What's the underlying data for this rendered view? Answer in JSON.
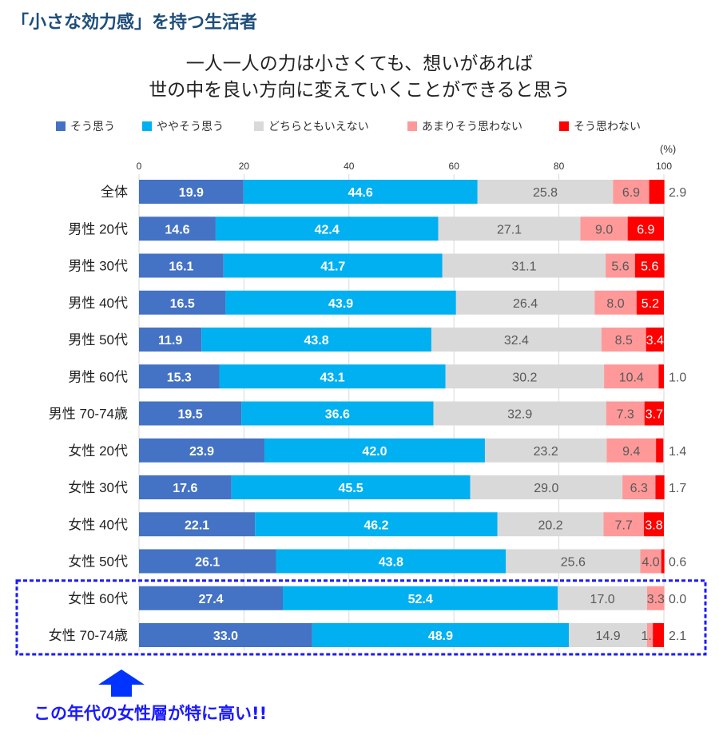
{
  "header": {
    "title": "「小さな効力感」を持つ生活者"
  },
  "chart_data": {
    "type": "bar",
    "orientation": "horizontal",
    "stacked": true,
    "title_lines": [
      "一人一人の力は小さくても、想いがあれば",
      "世の中を良い方向に変えていくことができると思う"
    ],
    "unit_label": "(%)",
    "xlim": [
      0,
      100
    ],
    "xticks": [
      0,
      20,
      40,
      60,
      80,
      100
    ],
    "grid": true,
    "legend_position": "top",
    "categories": [
      "全体",
      "男性 20代",
      "男性 30代",
      "男性 40代",
      "男性 50代",
      "男性 60代",
      "男性 70-74歳",
      "女性 20代",
      "女性 30代",
      "女性 40代",
      "女性 50代",
      "女性 60代",
      "女性 70-74歳"
    ],
    "series": [
      {
        "name": "そう思う",
        "color": "#4472C4",
        "values": [
          19.9,
          14.6,
          16.1,
          16.5,
          11.9,
          15.3,
          19.5,
          23.9,
          17.6,
          22.1,
          26.1,
          27.4,
          33.0
        ]
      },
      {
        "name": "ややそう思う",
        "color": "#00B0F0",
        "values": [
          44.6,
          42.4,
          41.7,
          43.9,
          43.8,
          43.1,
          36.6,
          42.0,
          45.5,
          46.2,
          43.8,
          52.4,
          48.9
        ]
      },
      {
        "name": "どちらともいえない",
        "color": "#D9D9D9",
        "values": [
          25.8,
          27.1,
          31.1,
          26.4,
          32.4,
          30.2,
          32.9,
          23.2,
          29.0,
          20.2,
          25.6,
          17.0,
          14.9
        ]
      },
      {
        "name": "あまりそう思わない",
        "color": "#FF9999",
        "values": [
          6.9,
          9.0,
          5.6,
          8.0,
          8.5,
          10.4,
          7.3,
          9.4,
          6.3,
          7.7,
          4.0,
          3.3,
          1.1
        ]
      },
      {
        "name": "そう思わない",
        "color": "#FF0000",
        "values": [
          2.9,
          6.9,
          5.6,
          5.2,
          3.4,
          1.0,
          3.7,
          1.4,
          1.7,
          3.8,
          0.6,
          0.0,
          2.1
        ]
      }
    ],
    "highlighted_categories": [
      "女性 60代",
      "女性 70-74歳"
    ]
  },
  "annotation": {
    "callout": "この年代の女性層が特に高い!!",
    "arrow_color": "#0033FF",
    "box_color": "#1a1aff"
  }
}
